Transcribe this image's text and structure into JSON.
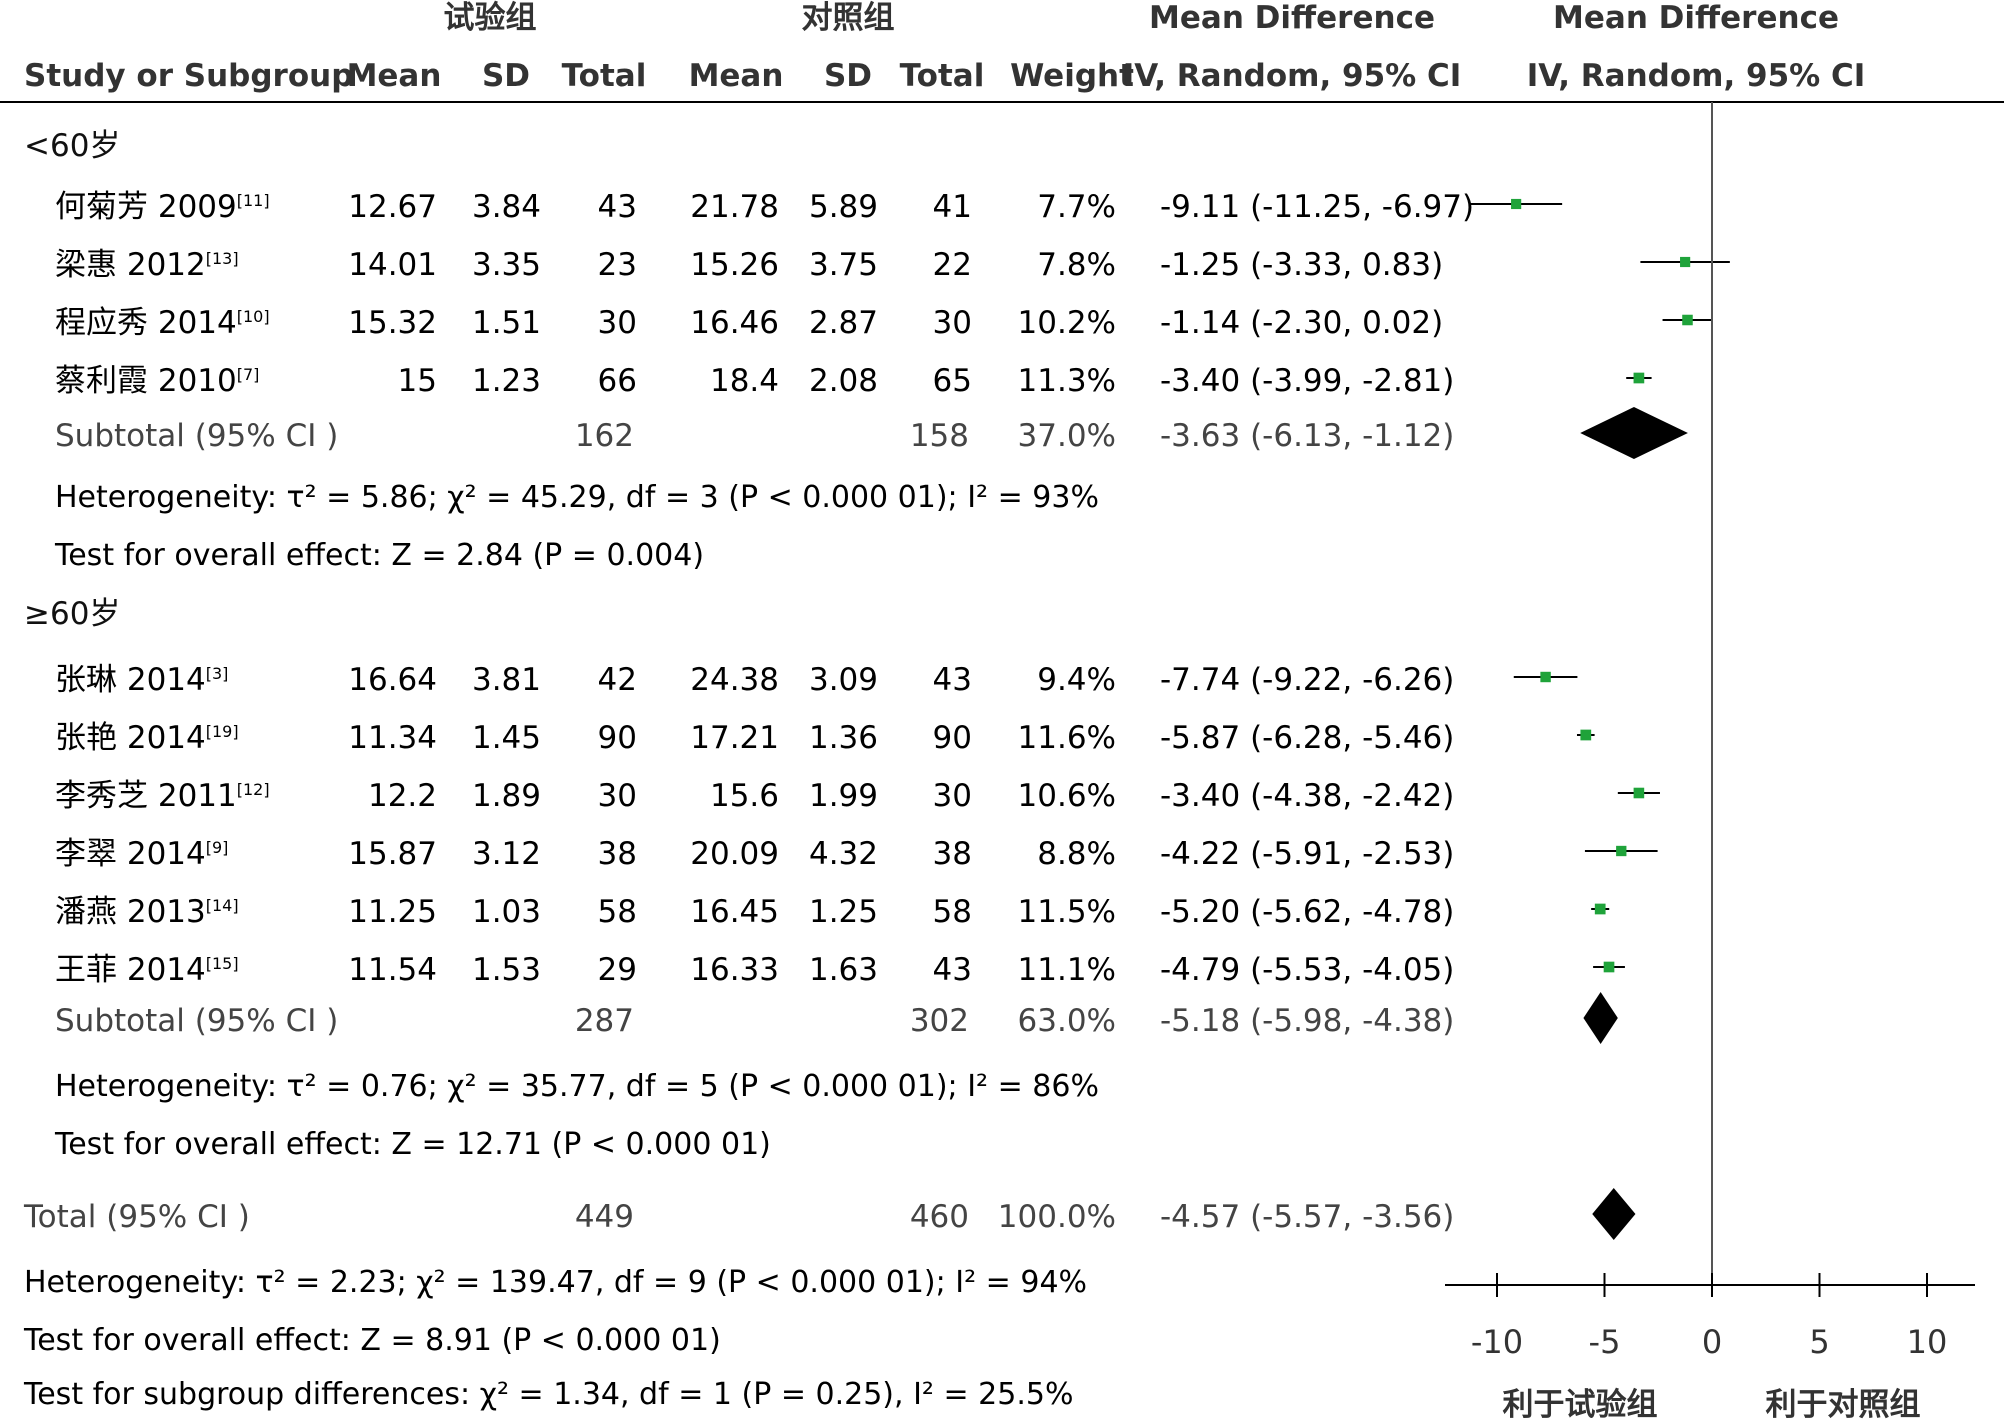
{
  "colors": {
    "marker": "#1fa33a",
    "diamond": "#000000",
    "line": "#000000",
    "zero_line": "#555555"
  },
  "header": {
    "group_exp": "试验组",
    "group_ctrl": "对照组",
    "md_col": "Mean Difference",
    "md_plot": "Mean Difference",
    "study_col": "Study or Subgroup",
    "mean_exp": "Mean",
    "sd_exp": "SD",
    "total_exp": "Total",
    "mean_ctrl": "Mean",
    "sd_ctrl": "SD",
    "total_ctrl": "Total",
    "weight": "Weight",
    "ci_col": "IV, Random, 95% CI",
    "ci_plot": "IV, Random, 95% CI"
  },
  "chart_data": {
    "type": "forest",
    "title": "",
    "xlabel": "",
    "xlim": [
      -12,
      12
    ],
    "xticks": [
      -10,
      -5,
      0,
      5,
      10
    ],
    "favours_left": "利于试验组",
    "favours_right": "利于对照组",
    "subgroups": [
      {
        "name": "<60岁",
        "studies": [
          {
            "study": "何菊芳 2009",
            "ref": "[11]",
            "mean_e": "12.67",
            "sd_e": "3.84",
            "n_e": "43",
            "mean_c": "21.78",
            "sd_c": "5.89",
            "n_c": "41",
            "weight": "7.7%",
            "ci_text": "-9.11 (-11.25, -6.97)",
            "md": -9.11,
            "lo": -11.25,
            "hi": -6.97
          },
          {
            "study": "梁惠 2012",
            "ref": "[13]",
            "mean_e": "14.01",
            "sd_e": "3.35",
            "n_e": "23",
            "mean_c": "15.26",
            "sd_c": "3.75",
            "n_c": "22",
            "weight": "7.8%",
            "ci_text": "-1.25 (-3.33, 0.83)",
            "md": -1.25,
            "lo": -3.33,
            "hi": 0.83
          },
          {
            "study": "程应秀 2014",
            "ref": "[10]",
            "mean_e": "15.32",
            "sd_e": "1.51",
            "n_e": "30",
            "mean_c": "16.46",
            "sd_c": "2.87",
            "n_c": "30",
            "weight": "10.2%",
            "ci_text": "-1.14 (-2.30, 0.02)",
            "md": -1.14,
            "lo": -2.3,
            "hi": 0.02
          },
          {
            "study": "蔡利霞 2010",
            "ref": "[7]",
            "mean_e": "15",
            "sd_e": "1.23",
            "n_e": "66",
            "mean_c": "18.4",
            "sd_c": "2.08",
            "n_c": "65",
            "weight": "11.3%",
            "ci_text": "-3.40 (-3.99, -2.81)",
            "md": -3.4,
            "lo": -3.99,
            "hi": -2.81
          }
        ],
        "subtotal": {
          "label": "Subtotal (95% CI )",
          "n_e": "162",
          "n_c": "158",
          "weight": "37.0%",
          "ci_text": "-3.63 (-6.13, -1.12)",
          "md": -3.63,
          "lo": -6.13,
          "hi": -1.12
        },
        "heterogeneity": "Heterogeneity: τ² = 5.86; χ² = 45.29, df = 3 (P < 0.000 01); I² = 93%",
        "overall": "Test for overall effect: Z = 2.84 (P = 0.004)"
      },
      {
        "name": "≥60岁",
        "studies": [
          {
            "study": "张琳 2014",
            "ref": "[3]",
            "mean_e": "16.64",
            "sd_e": "3.81",
            "n_e": "42",
            "mean_c": "24.38",
            "sd_c": "3.09",
            "n_c": "43",
            "weight": "9.4%",
            "ci_text": "-7.74 (-9.22, -6.26)",
            "md": -7.74,
            "lo": -9.22,
            "hi": -6.26
          },
          {
            "study": "张艳 2014",
            "ref": "[19]",
            "mean_e": "11.34",
            "sd_e": "1.45",
            "n_e": "90",
            "mean_c": "17.21",
            "sd_c": "1.36",
            "n_c": "90",
            "weight": "11.6%",
            "ci_text": "-5.87 (-6.28, -5.46)",
            "md": -5.87,
            "lo": -6.28,
            "hi": -5.46
          },
          {
            "study": "李秀芝 2011",
            "ref": "[12]",
            "mean_e": "12.2",
            "sd_e": "1.89",
            "n_e": "30",
            "mean_c": "15.6",
            "sd_c": "1.99",
            "n_c": "30",
            "weight": "10.6%",
            "ci_text": "-3.40 (-4.38, -2.42)",
            "md": -3.4,
            "lo": -4.38,
            "hi": -2.42
          },
          {
            "study": "李翠 2014",
            "ref": "[9]",
            "mean_e": "15.87",
            "sd_e": "3.12",
            "n_e": "38",
            "mean_c": "20.09",
            "sd_c": "4.32",
            "n_c": "38",
            "weight": "8.8%",
            "ci_text": "-4.22 (-5.91, -2.53)",
            "md": -4.22,
            "lo": -5.91,
            "hi": -2.53
          },
          {
            "study": "潘燕 2013",
            "ref": "[14]",
            "mean_e": "11.25",
            "sd_e": "1.03",
            "n_e": "58",
            "mean_c": "16.45",
            "sd_c": "1.25",
            "n_c": "58",
            "weight": "11.5%",
            "ci_text": "-5.20 (-5.62, -4.78)",
            "md": -5.2,
            "lo": -5.62,
            "hi": -4.78
          },
          {
            "study": "王菲 2014",
            "ref": "[15]",
            "mean_e": "11.54",
            "sd_e": "1.53",
            "n_e": "29",
            "mean_c": "16.33",
            "sd_c": "1.63",
            "n_c": "43",
            "weight": "11.1%",
            "ci_text": "-4.79 (-5.53, -4.05)",
            "md": -4.79,
            "lo": -5.53,
            "hi": -4.05
          }
        ],
        "subtotal": {
          "label": "Subtotal (95% CI )",
          "n_e": "287",
          "n_c": "302",
          "weight": "63.0%",
          "ci_text": "-5.18 (-5.98, -4.38)",
          "md": -5.18,
          "lo": -5.98,
          "hi": -4.38
        },
        "heterogeneity": "Heterogeneity: τ² = 0.76; χ² = 35.77, df = 5 (P < 0.000 01); I² = 86%",
        "overall": "Test for overall effect: Z = 12.71 (P < 0.000 01)"
      }
    ],
    "total": {
      "label": "Total (95% CI )",
      "n_e": "449",
      "n_c": "460",
      "weight": "100.0%",
      "ci_text": "-4.57 (-5.57, -3.56)",
      "md": -4.57,
      "lo": -5.57,
      "hi": -3.56
    },
    "heterogeneity": "Heterogeneity: τ² = 2.23; χ² = 139.47, df = 9 (P < 0.000 01); I² = 94%",
    "overall": "Test for overall effect: Z = 8.91 (P < 0.000 01)",
    "subgroup_diff": "Test for subgroup differences: χ² = 1.34, df = 1 (P = 0.25), I² = 25.5%"
  }
}
